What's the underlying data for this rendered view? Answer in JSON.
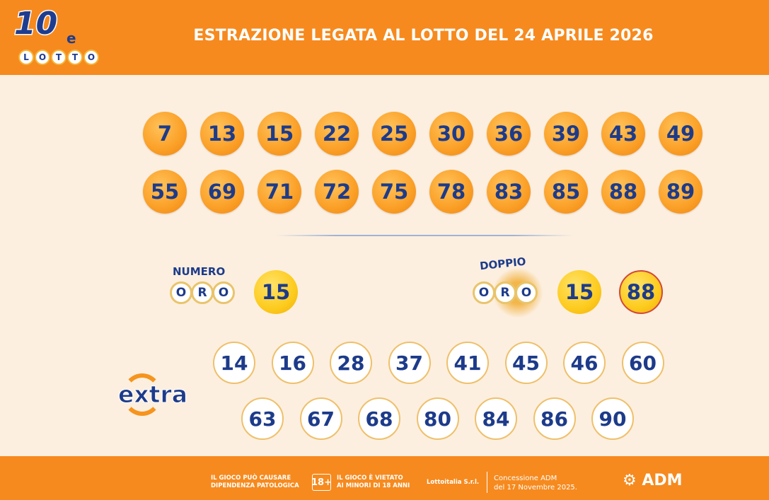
{
  "header": {
    "logo_text": "10eLOTTO",
    "logo_ten": "10",
    "logo_e": "e",
    "logo_letters": [
      "L",
      "O",
      "T",
      "T",
      "O"
    ],
    "title": "ESTRAZIONE LEGATA AL LOTTO DEL 24 APRILE 2026"
  },
  "main_numbers": [
    [
      "7",
      "13",
      "15",
      "22",
      "25",
      "30",
      "36",
      "39",
      "43",
      "49"
    ],
    [
      "55",
      "69",
      "71",
      "72",
      "75",
      "78",
      "83",
      "85",
      "88",
      "89"
    ]
  ],
  "numero_oro": {
    "label": "NUMERO",
    "letters": [
      "O",
      "R",
      "O"
    ],
    "value": "15"
  },
  "doppio_oro": {
    "label": "DOPPIO",
    "letters": [
      "O",
      "R",
      "O"
    ],
    "values": [
      "15",
      "88"
    ]
  },
  "extra": {
    "logo": "extra",
    "numbers": [
      [
        "14",
        "16",
        "28",
        "37",
        "41",
        "45",
        "46",
        "60"
      ],
      [
        "63",
        "67",
        "68",
        "80",
        "84",
        "86",
        "90"
      ]
    ]
  },
  "footer": {
    "warning1_l1": "IL GIOCO PUÒ CAUSARE",
    "warning1_l2": "DIPENDENZA PATOLOGICA",
    "age": "18+",
    "warning2_l1": "IL GIOCO È VIETATO",
    "warning2_l2": "AI MINORI DI 18 ANNI",
    "company": "Lottoitalia S.r.l.",
    "concession_l1": "Concessione ADM",
    "concession_l2": "del 17 Novembre 2025.",
    "adm": "ADM"
  },
  "colors": {
    "orange": "#f68a1e",
    "navy": "#1d3b8a",
    "background": "#fcefe0",
    "gold": "#fdcb1e"
  }
}
